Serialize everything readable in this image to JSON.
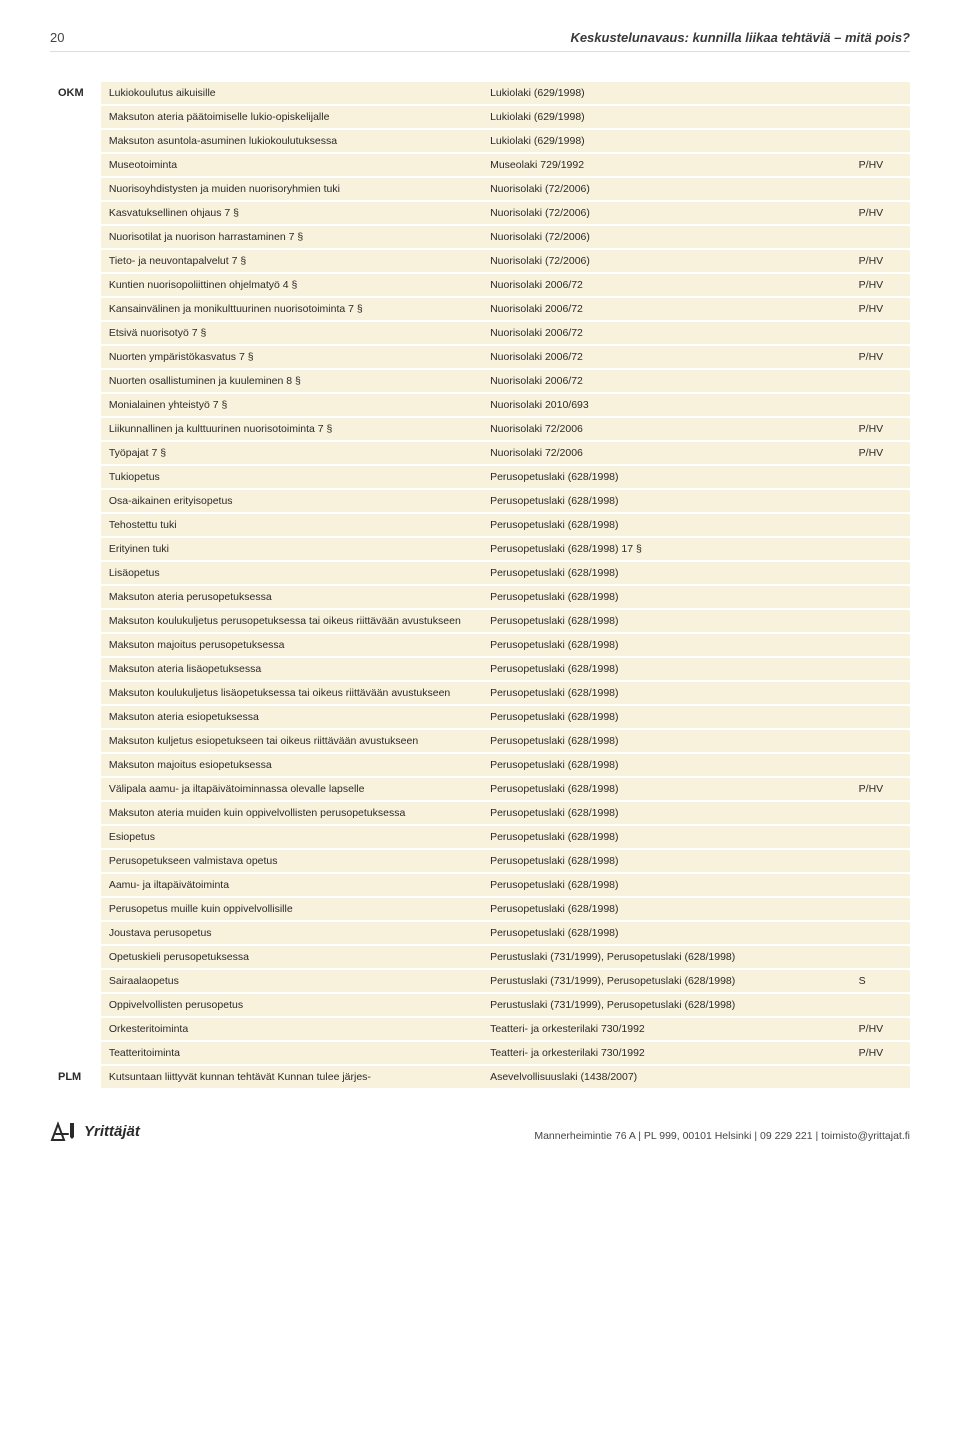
{
  "page_number": "20",
  "header_title": "Keskustelunavaus: kunnilla liikaa tehtäviä – mitä pois?",
  "colors": {
    "row_bg": "#f8f1db",
    "text": "#2a2a2a",
    "header_border": "#dddddd"
  },
  "logo_text": "Yrittäjät",
  "footer_line": "Mannerheimintie 76 A | PL 999, 00101 Helsinki | 09 229 221 | toimisto@yrittajat.fi",
  "rows": [
    {
      "c0": "OKM",
      "c1": "Lukiokoulutus aikuisille",
      "c2": "Lukiolaki (629/1998)",
      "c3": ""
    },
    {
      "c0": "",
      "c1": "Maksuton ateria päätoimiselle lukio-opiskelijalle",
      "c2": "Lukiolaki (629/1998)",
      "c3": ""
    },
    {
      "c0": "",
      "c1": "Maksuton asuntola-asuminen lukiokoulutuksessa",
      "c2": "Lukiolaki (629/1998)",
      "c3": ""
    },
    {
      "c0": "",
      "c1": "Museotoiminta",
      "c2": "Museolaki 729/1992",
      "c3": "P/HV"
    },
    {
      "c0": "",
      "c1": "Nuorisoyhdistysten ja muiden nuorisoryhmien tuki",
      "c2": "Nuorisolaki (72/2006)",
      "c3": ""
    },
    {
      "c0": "",
      "c1": "Kasvatuksellinen ohjaus 7 §",
      "c2": "Nuorisolaki (72/2006)",
      "c3": "P/HV"
    },
    {
      "c0": "",
      "c1": "Nuorisotilat ja nuorison harrastaminen 7 §",
      "c2": "Nuorisolaki (72/2006)",
      "c3": ""
    },
    {
      "c0": "",
      "c1": "Tieto- ja neuvontapalvelut 7 §",
      "c2": "Nuorisolaki (72/2006)",
      "c3": "P/HV"
    },
    {
      "c0": "",
      "c1": "Kuntien nuorisopoliittinen ohjelmatyö 4 §",
      "c2": "Nuorisolaki 2006/72",
      "c3": "P/HV"
    },
    {
      "c0": "",
      "c1": "Kansainvälinen ja monikulttuurinen nuorisotoiminta 7 §",
      "c2": "Nuorisolaki 2006/72",
      "c3": "P/HV"
    },
    {
      "c0": "",
      "c1": "Etsivä nuorisotyö 7 §",
      "c2": "Nuorisolaki 2006/72",
      "c3": ""
    },
    {
      "c0": "",
      "c1": "Nuorten ympäristökasvatus 7 §",
      "c2": "Nuorisolaki 2006/72",
      "c3": "P/HV"
    },
    {
      "c0": "",
      "c1": "Nuorten osallistuminen ja kuuleminen 8 §",
      "c2": "Nuorisolaki 2006/72",
      "c3": ""
    },
    {
      "c0": "",
      "c1": "Monialainen yhteistyö 7 §",
      "c2": "Nuorisolaki 2010/693",
      "c3": ""
    },
    {
      "c0": "",
      "c1": "Liikunnallinen ja kulttuurinen nuorisotoiminta 7 §",
      "c2": "Nuorisolaki 72/2006",
      "c3": "P/HV"
    },
    {
      "c0": "",
      "c1": "Työpajat 7 §",
      "c2": "Nuorisolaki 72/2006",
      "c3": "P/HV"
    },
    {
      "c0": "",
      "c1": "Tukiopetus",
      "c2": "Perusopetuslaki (628/1998)",
      "c3": ""
    },
    {
      "c0": "",
      "c1": "Osa-aikainen erityisopetus",
      "c2": "Perusopetuslaki (628/1998)",
      "c3": ""
    },
    {
      "c0": "",
      "c1": "Tehostettu tuki",
      "c2": "Perusopetuslaki (628/1998)",
      "c3": ""
    },
    {
      "c0": "",
      "c1": "Erityinen tuki",
      "c2": "Perusopetuslaki (628/1998) 17 §",
      "c3": ""
    },
    {
      "c0": "",
      "c1": "Lisäopetus",
      "c2": "Perusopetuslaki (628/1998)",
      "c3": ""
    },
    {
      "c0": "",
      "c1": "Maksuton ateria perusopetuksessa",
      "c2": "Perusopetuslaki (628/1998)",
      "c3": ""
    },
    {
      "c0": "",
      "c1": "Maksuton koulukuljetus perusopetuksessa tai oikeus riittävään avustukseen",
      "c2": "Perusopetuslaki (628/1998)",
      "c3": ""
    },
    {
      "c0": "",
      "c1": "Maksuton majoitus perusopetuksessa",
      "c2": "Perusopetuslaki (628/1998)",
      "c3": ""
    },
    {
      "c0": "",
      "c1": "Maksuton ateria lisäopetuksessa",
      "c2": "Perusopetuslaki (628/1998)",
      "c3": ""
    },
    {
      "c0": "",
      "c1": "Maksuton koulukuljetus lisäopetuksessa tai oikeus riittävään avustukseen",
      "c2": "Perusopetuslaki (628/1998)",
      "c3": ""
    },
    {
      "c0": "",
      "c1": "Maksuton ateria esiopetuksessa",
      "c2": "Perusopetuslaki (628/1998)",
      "c3": ""
    },
    {
      "c0": "",
      "c1": "Maksuton kuljetus esiopetukseen tai oikeus riittävään avustukseen",
      "c2": "Perusopetuslaki (628/1998)",
      "c3": ""
    },
    {
      "c0": "",
      "c1": "Maksuton majoitus esiopetuksessa",
      "c2": "Perusopetuslaki (628/1998)",
      "c3": ""
    },
    {
      "c0": "",
      "c1": "Välipala aamu- ja iltapäivätoiminnassa olevalle lapselle",
      "c2": "Perusopetuslaki (628/1998)",
      "c3": "P/HV"
    },
    {
      "c0": "",
      "c1": "Maksuton ateria muiden kuin oppivelvollisten perusopetuksessa",
      "c2": "Perusopetuslaki (628/1998)",
      "c3": ""
    },
    {
      "c0": "",
      "c1": "Esiopetus",
      "c2": "Perusopetuslaki (628/1998)",
      "c3": ""
    },
    {
      "c0": "",
      "c1": "Perusopetukseen valmistava opetus",
      "c2": "Perusopetuslaki (628/1998)",
      "c3": ""
    },
    {
      "c0": "",
      "c1": "Aamu- ja iltapäivätoiminta",
      "c2": "Perusopetuslaki (628/1998)",
      "c3": ""
    },
    {
      "c0": "",
      "c1": "Perusopetus muille kuin oppivelvollisille",
      "c2": "Perusopetuslaki (628/1998)",
      "c3": ""
    },
    {
      "c0": "",
      "c1": "Joustava perusopetus",
      "c2": "Perusopetuslaki (628/1998)",
      "c3": ""
    },
    {
      "c0": "",
      "c1": "Opetuskieli perusopetuksessa",
      "c2": "Perustuslaki (731/1999), Perusopetuslaki (628/1998)",
      "c3": ""
    },
    {
      "c0": "",
      "c1": "Sairaalaopetus",
      "c2": "Perustuslaki (731/1999), Perusopetuslaki (628/1998)",
      "c3": "S"
    },
    {
      "c0": "",
      "c1": "Oppivelvollisten perusopetus",
      "c2": "Perustuslaki (731/1999), Perusopetuslaki (628/1998)",
      "c3": ""
    },
    {
      "c0": "",
      "c1": "Orkesteritoiminta",
      "c2": "Teatteri- ja orkesterilaki 730/1992",
      "c3": "P/HV"
    },
    {
      "c0": "",
      "c1": "Teatteritoiminta",
      "c2": "Teatteri- ja orkesterilaki 730/1992",
      "c3": "P/HV"
    },
    {
      "c0": "PLM",
      "c1": "Kutsuntaan liittyvät kunnan tehtävät Kunnan tulee järjes-",
      "c2": "Asevelvollisuuslaki (1438/2007)",
      "c3": ""
    }
  ]
}
